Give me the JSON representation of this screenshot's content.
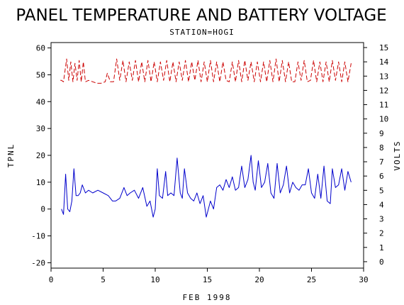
{
  "chart_data": {
    "type": "line",
    "title": "PANEL TEMPERATURE AND BATTERY VOLTAGE",
    "subtitle": "STATION=HOGI",
    "xlabel": "FEB 1998",
    "ylabel_left": "TPNL",
    "ylabel_right": "VOLTS",
    "xlim": [
      0,
      30
    ],
    "ylim_left": [
      -22,
      62
    ],
    "ylim_right": [
      -0.45,
      15.35
    ],
    "x_ticks": [
      0,
      5,
      10,
      15,
      20,
      25,
      30
    ],
    "y_left_ticks": [
      -20,
      -10,
      0,
      10,
      20,
      30,
      40,
      50,
      60
    ],
    "y_right_ticks": [
      0,
      1,
      2,
      3,
      4,
      5,
      6,
      7,
      8,
      9,
      10,
      11,
      12,
      13,
      14,
      15
    ],
    "grid": false,
    "legend": "none",
    "series": [
      {
        "axis": "left",
        "color": "#0000cc",
        "style": "solid",
        "x": [
          1.0,
          1.2,
          1.4,
          1.6,
          1.8,
          2.0,
          2.2,
          2.4,
          2.6,
          2.8,
          3.0,
          3.3,
          3.6,
          4.0,
          4.5,
          5.0,
          5.5,
          5.9,
          6.2,
          6.6,
          7.0,
          7.3,
          7.6,
          8.0,
          8.4,
          8.8,
          9.2,
          9.5,
          9.8,
          10.0,
          10.2,
          10.4,
          10.7,
          11.0,
          11.2,
          11.5,
          11.8,
          12.1,
          12.4,
          12.6,
          12.8,
          13.1,
          13.4,
          13.7,
          14.0,
          14.3,
          14.6,
          14.9,
          15.1,
          15.3,
          15.6,
          15.9,
          16.2,
          16.5,
          16.8,
          17.1,
          17.4,
          17.7,
          18.0,
          18.3,
          18.6,
          18.9,
          19.2,
          19.4,
          19.6,
          19.9,
          20.2,
          20.5,
          20.8,
          21.1,
          21.4,
          21.7,
          22.0,
          22.3,
          22.6,
          22.9,
          23.2,
          23.5,
          23.8,
          24.1,
          24.4,
          24.7,
          25.0,
          25.3,
          25.6,
          25.9,
          26.2,
          26.5,
          26.8,
          27.0,
          27.3,
          27.6,
          27.9,
          28.2,
          28.5,
          28.8
        ],
        "y": [
          0,
          -2,
          13,
          0,
          -1,
          3,
          15,
          5,
          5,
          6,
          9,
          6,
          7,
          6,
          7,
          6,
          5,
          3,
          3,
          4,
          8,
          5,
          6,
          7,
          4,
          8,
          1,
          3,
          -3,
          0,
          15,
          5,
          4,
          14,
          5,
          6,
          5,
          19,
          6,
          4,
          15,
          6,
          4,
          3,
          6,
          2,
          5,
          -3,
          0,
          3,
          0,
          8,
          9,
          7,
          11,
          8,
          12,
          7,
          8,
          16,
          8,
          11,
          20,
          10,
          7,
          18,
          8,
          10,
          17,
          6,
          4,
          17,
          6,
          9,
          16,
          6,
          10,
          8,
          7,
          9,
          9,
          15,
          6,
          4,
          13,
          4,
          16,
          3,
          2,
          15,
          8,
          9,
          15,
          7,
          14,
          10
        ]
      },
      {
        "axis": "right",
        "color": "#cc0000",
        "style": "dashed",
        "x": [
          0.9,
          1.0,
          1.2,
          1.5,
          1.7,
          1.9,
          2.1,
          2.3,
          2.5,
          2.7,
          2.9,
          3.1,
          3.3,
          3.6,
          4.0,
          4.4,
          4.8,
          5.2,
          5.4,
          5.7,
          6.0,
          6.3,
          6.6,
          6.9,
          7.2,
          7.5,
          7.8,
          8.1,
          8.4,
          8.7,
          9.0,
          9.3,
          9.6,
          9.9,
          10.2,
          10.5,
          10.8,
          11.1,
          11.4,
          11.7,
          12.0,
          12.3,
          12.6,
          12.9,
          13.2,
          13.5,
          13.8,
          14.1,
          14.4,
          14.7,
          15.0,
          15.3,
          15.6,
          15.9,
          16.2,
          16.5,
          16.8,
          17.1,
          17.4,
          17.7,
          18.0,
          18.3,
          18.6,
          18.9,
          19.2,
          19.5,
          19.8,
          20.1,
          20.4,
          20.7,
          21.0,
          21.3,
          21.6,
          21.9,
          22.2,
          22.5,
          22.8,
          23.1,
          23.4,
          23.7,
          24.0,
          24.3,
          24.6,
          24.9,
          25.2,
          25.5,
          25.8,
          26.1,
          26.4,
          26.7,
          27.0,
          27.3,
          27.6,
          27.9,
          28.2,
          28.5,
          28.8
        ],
        "y": [
          12.7,
          12.7,
          12.6,
          14.2,
          12.7,
          14.0,
          12.6,
          13.9,
          12.7,
          14.1,
          12.6,
          14.0,
          12.6,
          12.7,
          12.6,
          12.5,
          12.5,
          12.6,
          13.2,
          12.6,
          12.6,
          14.2,
          12.7,
          14.1,
          12.6,
          14.0,
          12.7,
          14.1,
          12.6,
          14.0,
          12.6,
          14.1,
          12.6,
          14.0,
          12.6,
          14.0,
          12.7,
          14.1,
          12.6,
          14.0,
          12.6,
          14.0,
          12.7,
          14.1,
          12.6,
          14.0,
          12.7,
          14.1,
          12.6,
          14.0,
          12.6,
          14.1,
          12.6,
          14.0,
          12.6,
          14.0,
          12.7,
          12.6,
          14.0,
          12.6,
          14.1,
          12.6,
          14.1,
          12.7,
          14.0,
          12.6,
          14.0,
          12.6,
          14.0,
          12.6,
          14.1,
          12.6,
          14.2,
          12.6,
          14.1,
          12.6,
          14.0,
          12.6,
          12.6,
          14.0,
          12.7,
          14.1,
          12.6,
          12.7,
          14.1,
          12.6,
          14.0,
          12.6,
          14.0,
          12.6,
          14.1,
          12.7,
          14.0,
          12.6,
          14.0,
          12.6,
          13.9
        ]
      }
    ]
  }
}
